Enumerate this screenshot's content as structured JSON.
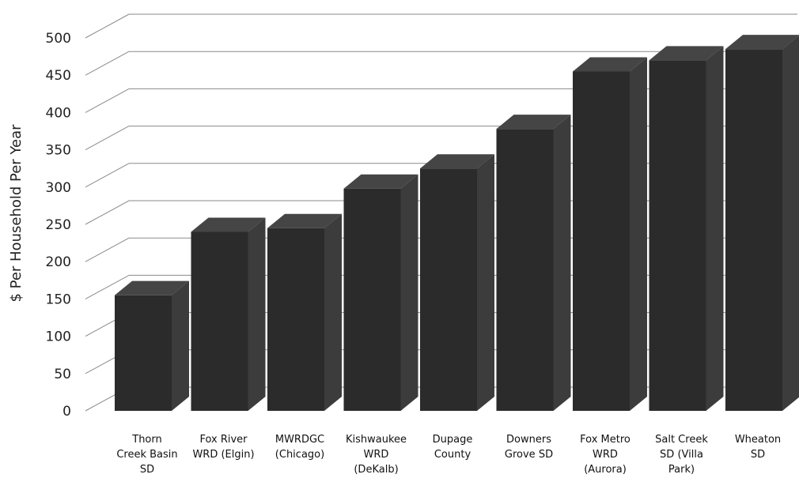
{
  "chart_data": {
    "type": "bar",
    "title": "",
    "xlabel": "",
    "ylabel": "$ Per Household Per Year",
    "ylim": [
      0,
      500
    ],
    "yticks": [
      0,
      50,
      100,
      150,
      200,
      250,
      300,
      350,
      400,
      450,
      500
    ],
    "grid": true,
    "style": "3d-column",
    "categories": [
      [
        "Thorn",
        "Creek Basin",
        "SD"
      ],
      [
        "Fox River",
        "WRD (Elgin)"
      ],
      [
        "MWRDGC",
        "(Chicago)"
      ],
      [
        "Kishwaukee",
        "WRD",
        "(DeKalb)"
      ],
      [
        "Dupage",
        "County"
      ],
      [
        "Downers",
        "Grove SD"
      ],
      [
        "Fox Metro",
        "WRD",
        "(Aurora)"
      ],
      [
        "Salt Creek",
        "SD (Villa",
        "Park)"
      ],
      [
        "Wheaton",
        "SD"
      ]
    ],
    "values": [
      155,
      240,
      245,
      298,
      325,
      378,
      455,
      470,
      485
    ],
    "colors": {
      "bar_front": "#2b2b2b",
      "bar_side": "#3c3c3c",
      "bar_top": "#454545",
      "grid": "#8a8a8a",
      "text": "#222222"
    }
  }
}
